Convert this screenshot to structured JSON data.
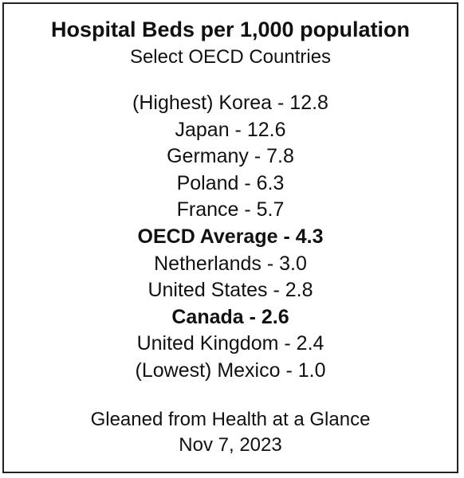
{
  "document": {
    "title": "Hospital Beds per 1,000 population",
    "subtitle": "Select OECD Countries",
    "entries": [
      {
        "text": "(Highest) Korea - 12.8",
        "bold": false
      },
      {
        "text": "Japan - 12.6",
        "bold": false
      },
      {
        "text": "Germany - 7.8",
        "bold": false
      },
      {
        "text": "Poland - 6.3",
        "bold": false
      },
      {
        "text": "France - 5.7",
        "bold": false
      },
      {
        "text": "OECD Average - 4.3",
        "bold": true
      },
      {
        "text": "Netherlands - 3.0",
        "bold": false
      },
      {
        "text": "United States - 2.8",
        "bold": false
      },
      {
        "text": "Canada - 2.6",
        "bold": true
      },
      {
        "text": "United Kingdom - 2.4",
        "bold": false
      },
      {
        "text": "(Lowest) Mexico - 1.0",
        "bold": false
      }
    ],
    "source": "Gleaned from Health at a Glance",
    "date": "Nov 7, 2023"
  }
}
